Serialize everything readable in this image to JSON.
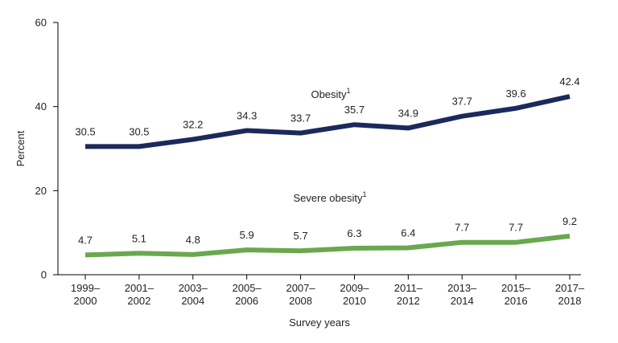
{
  "chart_data": {
    "type": "line",
    "categories": [
      [
        "1999–",
        "2000"
      ],
      [
        "2001–",
        "2002"
      ],
      [
        "2003–",
        "2004"
      ],
      [
        "2005–",
        "2006"
      ],
      [
        "2007–",
        "2008"
      ],
      [
        "2009–",
        "2010"
      ],
      [
        "2011–",
        "2012"
      ],
      [
        "2013–",
        "2014"
      ],
      [
        "2015–",
        "2016"
      ],
      [
        "2017–",
        "2018"
      ]
    ],
    "series": [
      {
        "name": "Obesity",
        "superscript": "1",
        "color": "#1b2a5c",
        "values": [
          30.5,
          30.5,
          32.2,
          34.3,
          33.7,
          35.7,
          34.9,
          37.7,
          39.6,
          42.4
        ]
      },
      {
        "name": "Severe obesity",
        "superscript": "1",
        "color": "#6aa84f",
        "values": [
          4.7,
          5.1,
          4.8,
          5.9,
          5.7,
          6.3,
          6.4,
          7.7,
          7.7,
          9.2
        ]
      }
    ],
    "xlabel": "Survey years",
    "ylabel": "Percent",
    "ylim": [
      0,
      60
    ],
    "yticks": [
      "0",
      "20",
      "40",
      "60"
    ],
    "grid": false,
    "legend": "inline labels above each line"
  }
}
